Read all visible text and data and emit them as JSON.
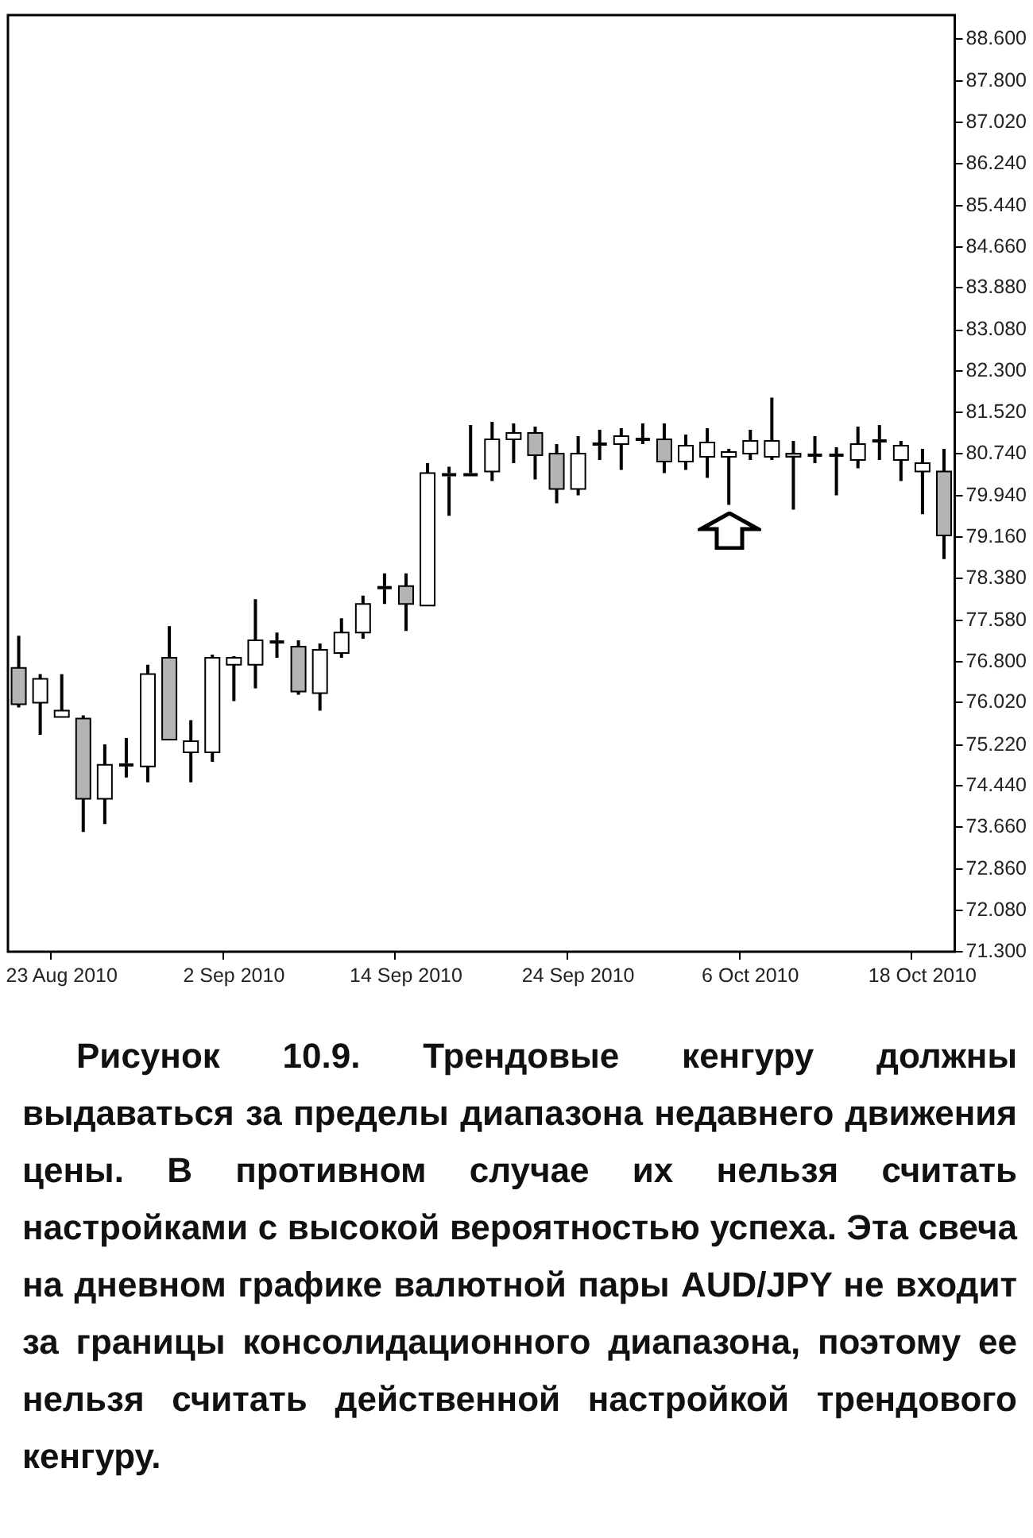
{
  "chart_data": {
    "type": "candlestick",
    "categories": [
      null,
      null,
      "23 Aug 2010",
      null,
      null,
      null,
      null,
      null,
      null,
      null,
      "2 Sep 2010",
      null,
      null,
      null,
      null,
      null,
      null,
      null,
      "14 Sep 2010",
      null,
      null,
      null,
      null,
      null,
      null,
      null,
      "24 Sep 2010",
      null,
      null,
      null,
      null,
      null,
      null,
      null,
      "6 Oct 2010",
      null,
      null,
      null,
      null,
      null,
      null,
      null,
      "18 Oct 2010",
      null
    ],
    "ohlc": [
      [
        76.68,
        77.29,
        75.93,
        75.99
      ],
      [
        76.02,
        76.56,
        75.41,
        76.47
      ],
      [
        75.75,
        76.56,
        75.75,
        75.87
      ],
      [
        75.72,
        75.78,
        73.57,
        74.2
      ],
      [
        74.2,
        75.23,
        73.72,
        74.84
      ],
      [
        74.84,
        75.35,
        74.6,
        74.84
      ],
      [
        74.81,
        76.74,
        74.51,
        76.56
      ],
      [
        76.87,
        77.47,
        75.32,
        75.32
      ],
      [
        75.08,
        75.69,
        74.51,
        75.29
      ],
      [
        75.08,
        76.93,
        74.9,
        76.87
      ],
      [
        76.74,
        76.9,
        76.05,
        76.87
      ],
      [
        76.74,
        77.98,
        76.29,
        77.2
      ],
      [
        77.17,
        77.35,
        76.87,
        77.17
      ],
      [
        77.08,
        77.2,
        76.17,
        76.23
      ],
      [
        76.2,
        77.14,
        75.87,
        77.02
      ],
      [
        76.96,
        77.62,
        76.87,
        77.35
      ],
      [
        77.35,
        78.05,
        77.23,
        77.89
      ],
      [
        78.2,
        78.47,
        77.89,
        78.2
      ],
      [
        78.23,
        78.47,
        77.38,
        77.89
      ],
      [
        77.86,
        80.56,
        77.86,
        80.37
      ],
      [
        80.34,
        80.49,
        79.56,
        80.34
      ],
      [
        80.34,
        81.28,
        80.31,
        80.34
      ],
      [
        80.4,
        81.34,
        80.22,
        81.01
      ],
      [
        81.01,
        81.31,
        80.56,
        81.13
      ],
      [
        81.13,
        81.25,
        80.25,
        80.71
      ],
      [
        80.74,
        80.92,
        79.8,
        80.07
      ],
      [
        80.07,
        81.07,
        79.95,
        80.74
      ],
      [
        80.92,
        81.19,
        80.62,
        80.92
      ],
      [
        80.92,
        81.22,
        80.43,
        81.07
      ],
      [
        81.01,
        81.31,
        80.92,
        81.01
      ],
      [
        81.01,
        81.31,
        80.37,
        80.59
      ],
      [
        80.59,
        81.1,
        80.43,
        80.89
      ],
      [
        80.68,
        81.22,
        80.28,
        80.95
      ],
      [
        80.68,
        80.83,
        79.77,
        80.77
      ],
      [
        80.74,
        81.19,
        80.62,
        80.98
      ],
      [
        80.68,
        81.8,
        80.62,
        80.98
      ],
      [
        80.74,
        80.98,
        79.68,
        80.68
      ],
      [
        80.71,
        81.07,
        80.56,
        80.71
      ],
      [
        80.71,
        80.86,
        79.95,
        80.71
      ],
      [
        80.62,
        81.25,
        80.46,
        80.92
      ],
      [
        80.98,
        81.28,
        80.62,
        80.98
      ],
      [
        80.62,
        80.98,
        80.22,
        80.89
      ],
      [
        80.4,
        80.83,
        79.59,
        80.56
      ],
      [
        80.4,
        80.83,
        78.74,
        79.19
      ]
    ],
    "colors": [
      "#b4b4b4",
      "#ffffff",
      "#ffffff",
      "#b4b4b4",
      "#ffffff",
      "#000000",
      "#ffffff",
      "#b4b4b4",
      "#ffffff",
      "#ffffff",
      "#ffffff",
      "#ffffff",
      "#000000",
      "#b4b4b4",
      "#ffffff",
      "#ffffff",
      "#ffffff",
      "#000000",
      "#b4b4b4",
      "#ffffff",
      "#000000",
      "#000000",
      "#ffffff",
      "#ffffff",
      "#b4b4b4",
      "#b4b4b4",
      "#ffffff",
      "#000000",
      "#ffffff",
      "#000000",
      "#b4b4b4",
      "#ffffff",
      "#ffffff",
      "#ffffff",
      "#ffffff",
      "#ffffff",
      "#b4b4b4",
      "#000000",
      "#000000",
      "#ffffff",
      "#000000",
      "#ffffff",
      "#ffffff",
      "#b4b4b4"
    ],
    "ylim": [
      71.3,
      89.05
    ],
    "yticks": [
      {
        "value": 88.6,
        "label": "88.600"
      },
      {
        "value": 87.8,
        "label": "87.800"
      },
      {
        "value": 87.02,
        "label": "87.020"
      },
      {
        "value": 86.24,
        "label": "86.240"
      },
      {
        "value": 85.44,
        "label": "85.440"
      },
      {
        "value": 84.66,
        "label": "84.660"
      },
      {
        "value": 83.88,
        "label": "83.880"
      },
      {
        "value": 83.08,
        "label": "83.080"
      },
      {
        "value": 82.3,
        "label": "82.300"
      },
      {
        "value": 81.52,
        "label": "81.520"
      },
      {
        "value": 80.74,
        "label": "80.740"
      },
      {
        "value": 79.94,
        "label": "79.940"
      },
      {
        "value": 79.16,
        "label": "79.160"
      },
      {
        "value": 78.38,
        "label": "78.380"
      },
      {
        "value": 77.58,
        "label": "77.580"
      },
      {
        "value": 76.8,
        "label": "76.800"
      },
      {
        "value": 76.02,
        "label": "76.020"
      },
      {
        "value": 75.22,
        "label": "75.220"
      },
      {
        "value": 74.44,
        "label": "74.440"
      },
      {
        "value": 73.66,
        "label": "73.660"
      },
      {
        "value": 72.86,
        "label": "72.860"
      },
      {
        "value": 72.08,
        "label": "72.080"
      },
      {
        "value": 71.3,
        "label": "71.300"
      }
    ],
    "grid": false,
    "legend": false,
    "annotations": [
      "Рисунок 10.9. Трендовые кенгуру должны выдаваться за пределы диапазона недавнего движения цены. В противном случае их нельзя считать настройками с высокой вероятностью успеха. Эта свеча на дневном графике валютной пары AUD/JPY не входит за границы консолидационного диапазона, поэтому ее нельзя считать действенной настройкой трендового кенгуру."
    ]
  }
}
